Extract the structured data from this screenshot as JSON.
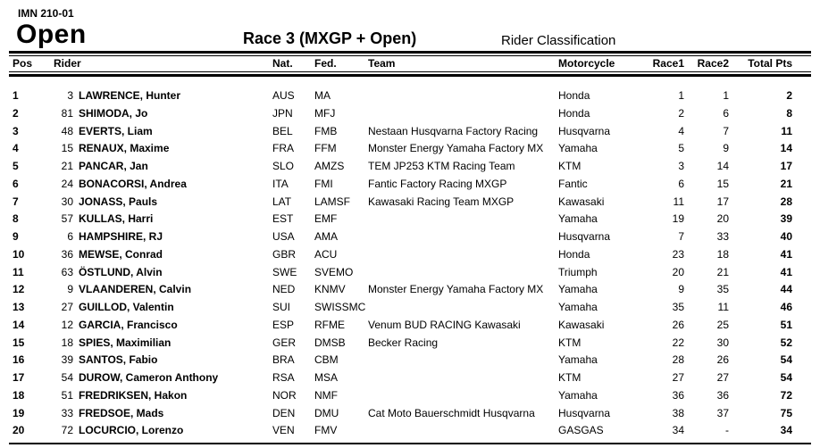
{
  "document": {
    "code": "IMN 210-01",
    "class_title": "Open",
    "race_title": "Race 3 (MXGP + Open)",
    "subtitle": "Rider Classification"
  },
  "table": {
    "headers": [
      "Pos",
      "Rider",
      "Nat.",
      "Fed.",
      "Team",
      "Motorcycle",
      "Race1",
      "Race2",
      "Total Pts"
    ],
    "rows": [
      {
        "pos": "1",
        "no": "3",
        "rider": "LAWRENCE, Hunter",
        "nat": "AUS",
        "fed": "MA",
        "team": "",
        "moto": "Honda",
        "race1": "1",
        "race2": "1",
        "total": "2"
      },
      {
        "pos": "2",
        "no": "81",
        "rider": "SHIMODA, Jo",
        "nat": "JPN",
        "fed": "MFJ",
        "team": "",
        "moto": "Honda",
        "race1": "2",
        "race2": "6",
        "total": "8"
      },
      {
        "pos": "3",
        "no": "48",
        "rider": "EVERTS, Liam",
        "nat": "BEL",
        "fed": "FMB",
        "team": "Nestaan Husqvarna Factory Racing",
        "moto": "Husqvarna",
        "race1": "4",
        "race2": "7",
        "total": "11"
      },
      {
        "pos": "4",
        "no": "15",
        "rider": "RENAUX, Maxime",
        "nat": "FRA",
        "fed": "FFM",
        "team": "Monster Energy Yamaha Factory MX",
        "moto": "Yamaha",
        "race1": "5",
        "race2": "9",
        "total": "14"
      },
      {
        "pos": "5",
        "no": "21",
        "rider": "PANCAR, Jan",
        "nat": "SLO",
        "fed": "AMZS",
        "team": "TEM JP253 KTM Racing Team",
        "moto": "KTM",
        "race1": "3",
        "race2": "14",
        "total": "17"
      },
      {
        "pos": "6",
        "no": "24",
        "rider": "BONACORSI, Andrea",
        "nat": "ITA",
        "fed": "FMI",
        "team": "Fantic Factory Racing MXGP",
        "moto": "Fantic",
        "race1": "6",
        "race2": "15",
        "total": "21"
      },
      {
        "pos": "7",
        "no": "30",
        "rider": "JONASS, Pauls",
        "nat": "LAT",
        "fed": "LAMSF",
        "team": "Kawasaki Racing Team MXGP",
        "moto": "Kawasaki",
        "race1": "11",
        "race2": "17",
        "total": "28"
      },
      {
        "pos": "8",
        "no": "57",
        "rider": "KULLAS, Harri",
        "nat": "EST",
        "fed": "EMF",
        "team": "",
        "moto": "Yamaha",
        "race1": "19",
        "race2": "20",
        "total": "39"
      },
      {
        "pos": "9",
        "no": "6",
        "rider": "HAMPSHIRE, RJ",
        "nat": "USA",
        "fed": "AMA",
        "team": "",
        "moto": "Husqvarna",
        "race1": "7",
        "race2": "33",
        "total": "40"
      },
      {
        "pos": "10",
        "no": "36",
        "rider": "MEWSE, Conrad",
        "nat": "GBR",
        "fed": "ACU",
        "team": "",
        "moto": "Honda",
        "race1": "23",
        "race2": "18",
        "total": "41"
      },
      {
        "pos": "11",
        "no": "63",
        "rider": "ÖSTLUND, Alvin",
        "nat": "SWE",
        "fed": "SVEMO",
        "team": "",
        "moto": "Triumph",
        "race1": "20",
        "race2": "21",
        "total": "41"
      },
      {
        "pos": "12",
        "no": "9",
        "rider": "VLAANDEREN, Calvin",
        "nat": "NED",
        "fed": "KNMV",
        "team": "Monster Energy Yamaha Factory MX",
        "moto": "Yamaha",
        "race1": "9",
        "race2": "35",
        "total": "44"
      },
      {
        "pos": "13",
        "no": "27",
        "rider": "GUILLOD, Valentin",
        "nat": "SUI",
        "fed": "SWISSMC",
        "team": "",
        "moto": "Yamaha",
        "race1": "35",
        "race2": "11",
        "total": "46"
      },
      {
        "pos": "14",
        "no": "12",
        "rider": "GARCIA, Francisco",
        "nat": "ESP",
        "fed": "RFME",
        "team": "Venum BUD RACING Kawasaki",
        "moto": "Kawasaki",
        "race1": "26",
        "race2": "25",
        "total": "51"
      },
      {
        "pos": "15",
        "no": "18",
        "rider": "SPIES, Maximilian",
        "nat": "GER",
        "fed": "DMSB",
        "team": "Becker Racing",
        "moto": "KTM",
        "race1": "22",
        "race2": "30",
        "total": "52"
      },
      {
        "pos": "16",
        "no": "39",
        "rider": "SANTOS, Fabio",
        "nat": "BRA",
        "fed": "CBM",
        "team": "",
        "moto": "Yamaha",
        "race1": "28",
        "race2": "26",
        "total": "54"
      },
      {
        "pos": "17",
        "no": "54",
        "rider": "DUROW, Cameron Anthony",
        "nat": "RSA",
        "fed": "MSA",
        "team": "",
        "moto": "KTM",
        "race1": "27",
        "race2": "27",
        "total": "54"
      },
      {
        "pos": "18",
        "no": "51",
        "rider": "FREDRIKSEN, Hakon",
        "nat": "NOR",
        "fed": "NMF",
        "team": "",
        "moto": "Yamaha",
        "race1": "36",
        "race2": "36",
        "total": "72"
      },
      {
        "pos": "19",
        "no": "33",
        "rider": "FREDSOE, Mads",
        "nat": "DEN",
        "fed": "DMU",
        "team": "Cat Moto Bauerschmidt Husqvarna",
        "moto": "Husqvarna",
        "race1": "38",
        "race2": "37",
        "total": "75"
      },
      {
        "pos": "20",
        "no": "72",
        "rider": "LOCURCIO, Lorenzo",
        "nat": "VEN",
        "fed": "FMV",
        "team": "",
        "moto": "GASGAS",
        "race1": "34",
        "race2": "-",
        "total": "34"
      }
    ]
  }
}
